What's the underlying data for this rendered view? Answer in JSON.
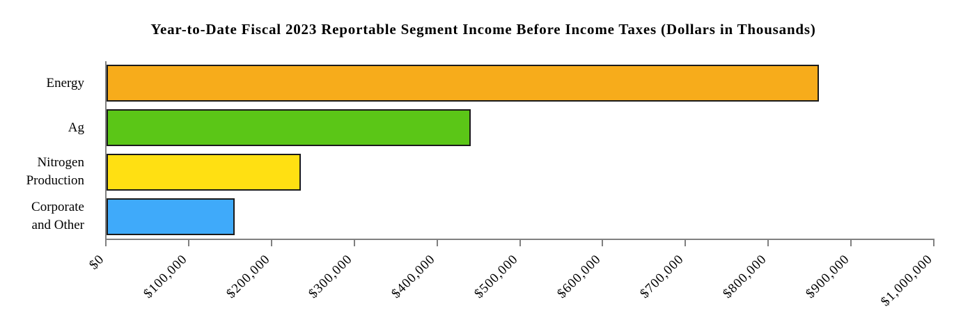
{
  "chart_data": {
    "type": "bar",
    "orientation": "horizontal",
    "title": "Year-to-Date Fiscal 2023 Reportable Segment Income Before Income Taxes (Dollars in Thousands)",
    "categories": [
      "Energy",
      "Ag",
      "Nitrogen\nProduction",
      "Corporate\nand Other"
    ],
    "values": [
      860000,
      440000,
      235000,
      155000
    ],
    "value_unit": "USD thousands",
    "colors": [
      "#F7AC1B",
      "#5BC617",
      "#FFE012",
      "#3FAAFA"
    ],
    "bar_outline_color": "#1a1a1a",
    "axis_color": "#808080",
    "xlim": [
      0,
      1000000
    ],
    "xticks": [
      {
        "value": 0,
        "label": "$0"
      },
      {
        "value": 100000,
        "label": "$100,000"
      },
      {
        "value": 200000,
        "label": "$200,000"
      },
      {
        "value": 300000,
        "label": "$300,000"
      },
      {
        "value": 400000,
        "label": "$400,000"
      },
      {
        "value": 500000,
        "label": "$500,000"
      },
      {
        "value": 600000,
        "label": "$600,000"
      },
      {
        "value": 700000,
        "label": "$700,000"
      },
      {
        "value": 800000,
        "label": "$800,000"
      },
      {
        "value": 900000,
        "label": "$900,000"
      },
      {
        "value": 1000000,
        "label": "$1,000,000"
      }
    ],
    "xtick_label_rotation_deg": 45,
    "grid": false,
    "legend": false,
    "xlabel": "",
    "ylabel": ""
  }
}
